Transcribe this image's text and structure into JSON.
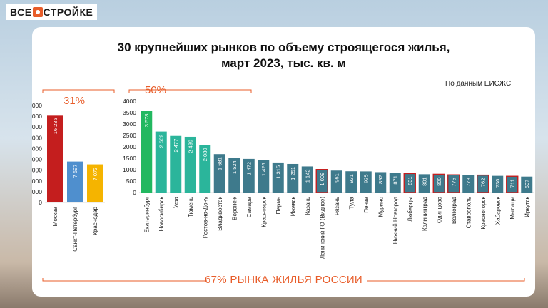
{
  "brand": {
    "text_left": "ВСЕ",
    "text_right": "СТРОЙКЕ"
  },
  "title_line1": "30 крупнейших рынков по объему строящегося жилья,",
  "title_line2": "март 2023, тыс. кв. м",
  "source": "По данным ЕИСЖС",
  "left_share": "31%",
  "right_share": "50%",
  "bottom_text": "67% РЫНКА ЖИЛЬЯ РОССИИ",
  "colors": {
    "accent": "#e85d2a",
    "green": "#22b860",
    "teal": "#2bb59b",
    "steel": "#3e7a8c",
    "red": "#c41e1e",
    "blue": "#4f8fce",
    "yellow": "#f5b400"
  },
  "chart_data": [
    {
      "type": "bar",
      "categories": [
        "Москва",
        "Санкт-Петербург",
        "Краснодар"
      ],
      "values": [
        16235,
        7597,
        7073
      ],
      "value_labels": [
        "16 235",
        "7 597",
        "7 073"
      ],
      "ylim": [
        0,
        18000
      ],
      "yticks": [
        0,
        2000,
        4000,
        6000,
        8000,
        10000,
        12000,
        14000,
        16000,
        18000
      ],
      "colors": [
        "#c41e1e",
        "#4f8fce",
        "#f5b400"
      ]
    },
    {
      "type": "bar",
      "categories": [
        "Екатеринбург",
        "Новосибирск",
        "Уфа",
        "Тюмень",
        "Ростов-на-Дону",
        "Владивосток",
        "Воронеж",
        "Самара",
        "Красноярск",
        "Пермь",
        "Ижевск",
        "Казань",
        "Ленинский ГО (Видное)",
        "Рязань",
        "Тула",
        "Пенза",
        "Мурино",
        "Нижний Новгород",
        "Люберцы",
        "Калининград",
        "Одинцово",
        "Волгоград",
        "Ставрополь",
        "Красногорск",
        "Хабаровск",
        "Мытищи",
        "Иркутск"
      ],
      "values": [
        3578,
        2669,
        2477,
        2439,
        2080,
        1681,
        1524,
        1472,
        1426,
        1315,
        1251,
        1142,
        1009,
        961,
        931,
        925,
        892,
        871,
        831,
        801,
        800,
        775,
        773,
        762,
        730,
        711,
        697
      ],
      "value_labels": [
        "3 578",
        "2 669",
        "2 477",
        "2 439",
        "2 080",
        "1 681",
        "1 524",
        "1 472",
        "1 426",
        "1 315",
        "1 251",
        "1 142",
        "1 009",
        "961",
        "931",
        "925",
        "892",
        "871",
        "831",
        "801",
        "800",
        "775",
        "773",
        "762",
        "730",
        "711",
        "697"
      ],
      "highlighted": [
        false,
        false,
        false,
        false,
        false,
        false,
        false,
        false,
        false,
        false,
        false,
        false,
        true,
        false,
        false,
        false,
        false,
        false,
        true,
        false,
        true,
        true,
        false,
        true,
        false,
        true,
        false
      ],
      "ylim": [
        0,
        4000
      ],
      "yticks": [
        0,
        500,
        1000,
        1500,
        2000,
        2500,
        3000,
        3500,
        4000
      ]
    }
  ]
}
